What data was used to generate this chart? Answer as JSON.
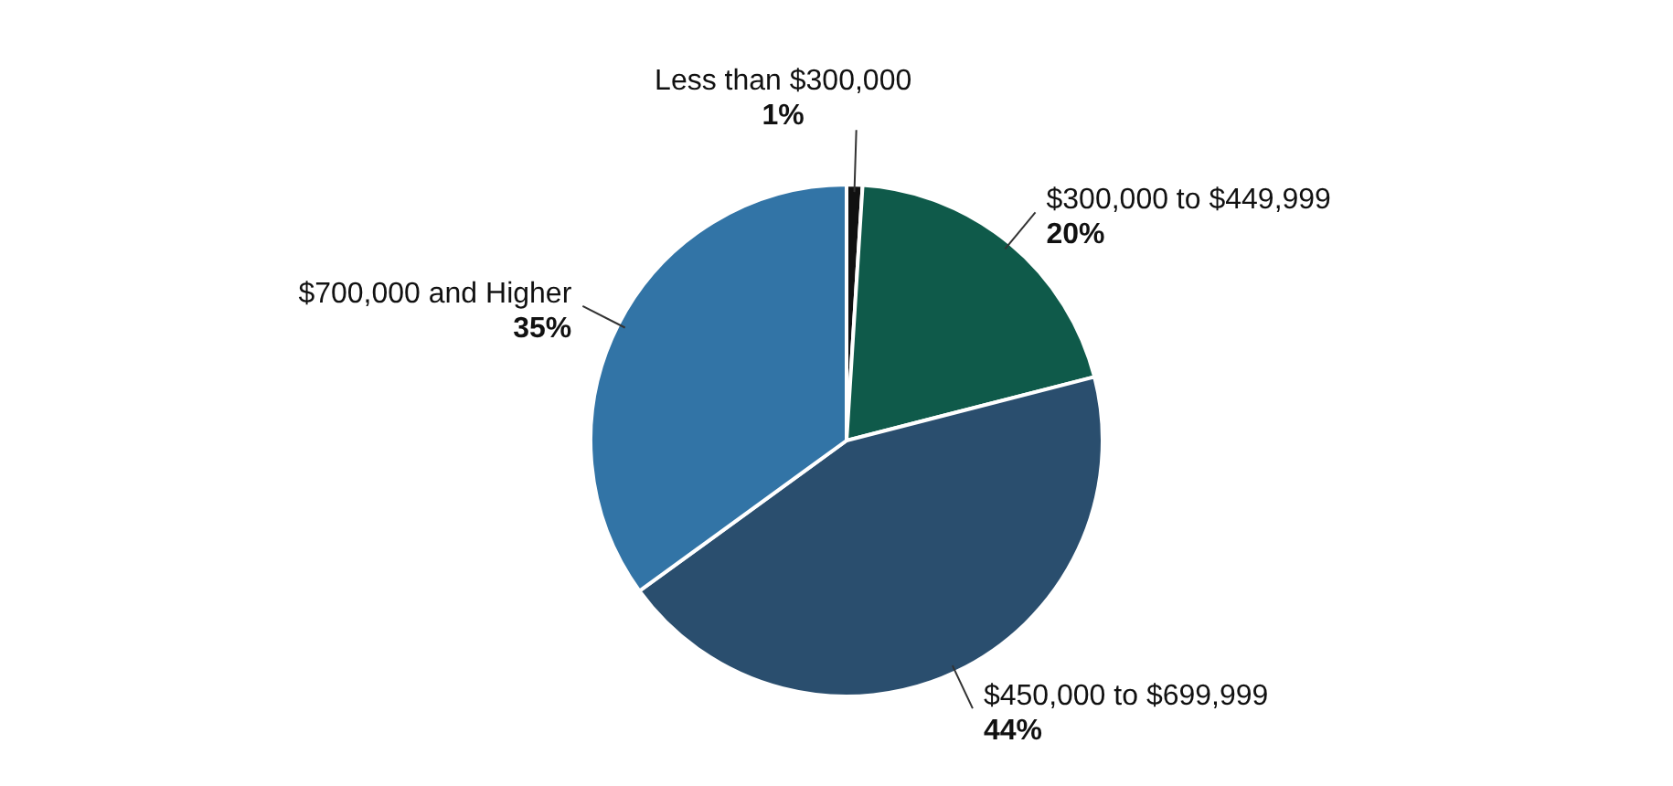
{
  "chart_data": {
    "type": "pie",
    "categories": [
      "Less than $300,000",
      "$300,000 to $449,999",
      "$450,000 to $699,999",
      "$700,000 and Higher"
    ],
    "values": [
      1,
      20,
      44,
      35
    ],
    "colors": [
      "#111111",
      "#0f5a4a",
      "#2a4e6e",
      "#3274a6"
    ],
    "value_labels": [
      "1%",
      "20%",
      "44%",
      "35%"
    ],
    "legend": false
  }
}
